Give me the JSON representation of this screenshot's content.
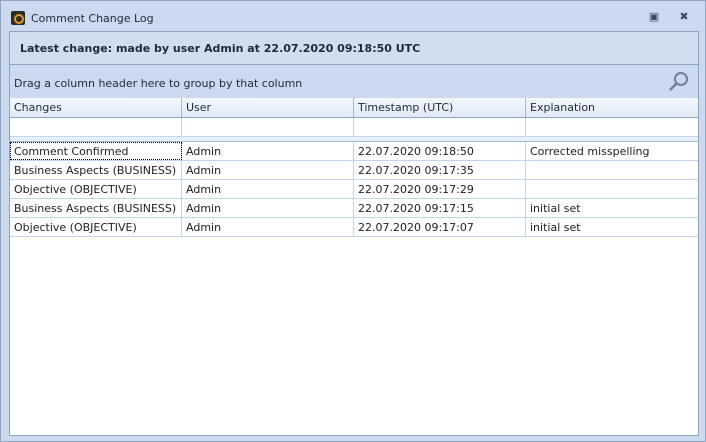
{
  "window": {
    "title": "Comment Change Log",
    "app_icon": "app-logo-icon",
    "restore_icon": "restore-icon",
    "close_icon": "close-icon"
  },
  "latest_change": "Latest change: made by user Admin at 22.07.2020 09:18:50 UTC",
  "group_panel": {
    "hint": "Drag a column header here to group by that column",
    "search_icon": "search-icon"
  },
  "grid": {
    "columns": [
      "Changes",
      "User",
      "Timestamp (UTC)",
      "Explanation"
    ],
    "rows": [
      [
        "Comment Confirmed",
        "Admin",
        "22.07.2020 09:18:50",
        "Corrected misspelling"
      ],
      [
        "Business Aspects (BUSINESS)",
        "Admin",
        "22.07.2020 09:17:35",
        ""
      ],
      [
        "Objective (OBJECTIVE)",
        "Admin",
        "22.07.2020 09:17:29",
        ""
      ],
      [
        "Business Aspects (BUSINESS)",
        "Admin",
        "22.07.2020 09:17:15",
        "initial set"
      ],
      [
        "Objective (OBJECTIVE)",
        "Admin",
        "22.07.2020 09:17:07",
        "initial set"
      ]
    ]
  }
}
